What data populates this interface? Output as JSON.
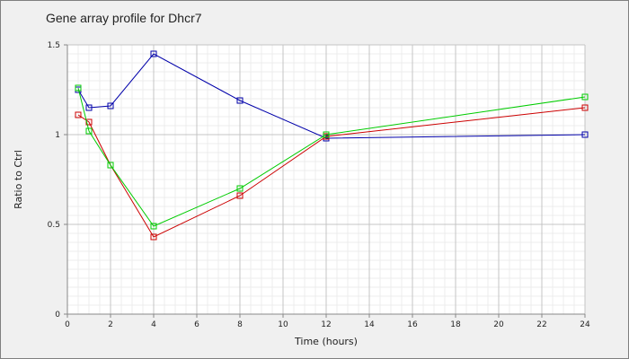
{
  "chart_data": {
    "type": "line",
    "title": "Gene array profile for Dhcr7",
    "xlabel": "Time (hours)",
    "ylabel": "Ratio to Ctrl",
    "xlim": [
      0,
      24
    ],
    "ylim": [
      0,
      1.5
    ],
    "x_ticks": [
      0,
      2,
      4,
      6,
      8,
      10,
      12,
      14,
      16,
      18,
      20,
      22,
      24
    ],
    "y_ticks": [
      0,
      0.5,
      1,
      1.5
    ],
    "y_tick_labels": [
      "0",
      "0.5",
      "1",
      "1.5"
    ],
    "grid": true,
    "legend": "none",
    "series": [
      {
        "color": "#0000aa",
        "x": [
          0.5,
          1,
          2,
          4,
          8,
          12,
          24
        ],
        "values": [
          1.25,
          1.15,
          1.16,
          1.45,
          1.19,
          0.98,
          1.0
        ]
      },
      {
        "color": "#cc0000",
        "x": [
          0.5,
          1,
          2,
          4,
          8,
          12,
          24
        ],
        "values": [
          1.11,
          1.07,
          0.83,
          0.43,
          0.66,
          0.99,
          1.15
        ]
      },
      {
        "color": "#00cc00",
        "x": [
          0.5,
          1,
          2,
          4,
          8,
          12,
          24
        ],
        "values": [
          1.26,
          1.02,
          0.83,
          0.49,
          0.7,
          1.0,
          1.21
        ]
      }
    ]
  }
}
